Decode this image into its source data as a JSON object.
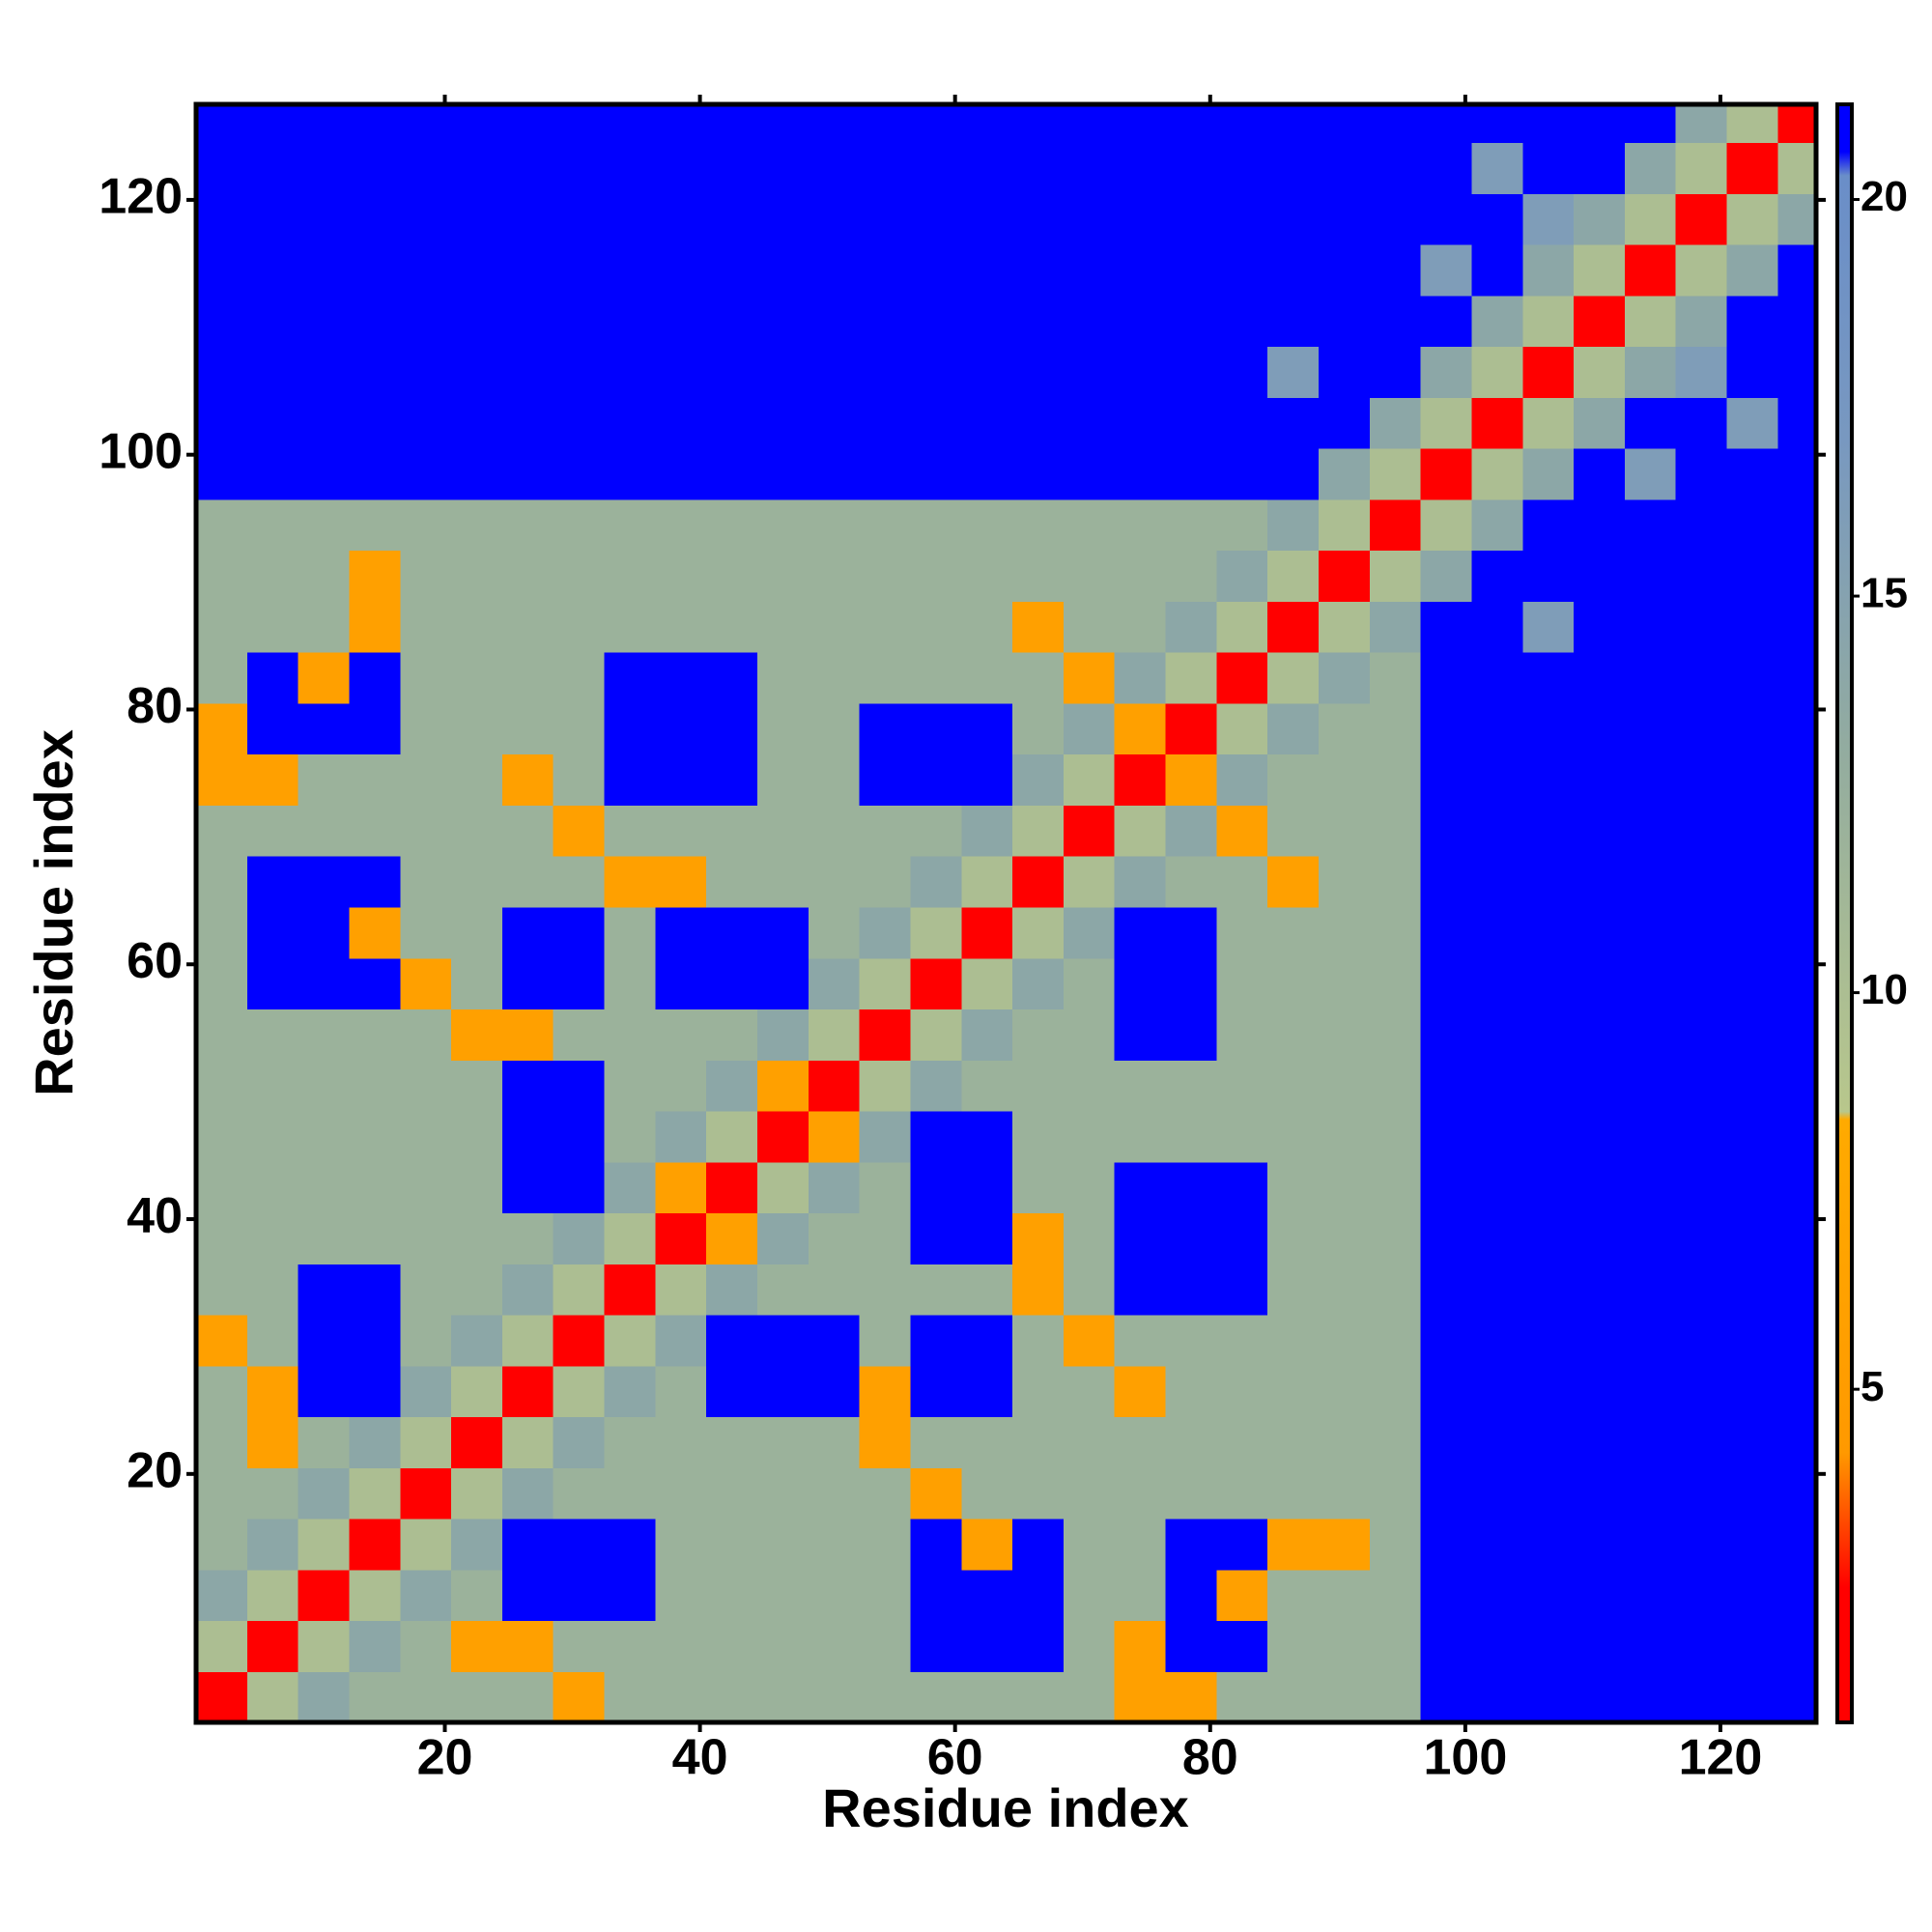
{
  "chart_data": {
    "type": "heatmap",
    "x_label": "Residue index",
    "y_label": "Residue index",
    "xlim": [
      0.5,
      127.5
    ],
    "ylim": [
      0.5,
      127.5
    ],
    "xticks": [
      20,
      40,
      60,
      80,
      100,
      120
    ],
    "yticks": [
      20,
      40,
      60,
      80,
      100,
      120
    ],
    "clim": [
      0.8,
      21.2
    ],
    "colorbar_ticks": [
      5,
      10,
      15,
      20
    ],
    "colorscale": [
      [
        0.8,
        "#ff0000"
      ],
      [
        2.5,
        "#ff0000"
      ],
      [
        4.2,
        "#ff9900"
      ],
      [
        8.4,
        "#ffaa00"
      ],
      [
        8.5,
        "#b8c78c"
      ],
      [
        13,
        "#93ac9f"
      ],
      [
        17,
        "#7898c0"
      ],
      [
        20.3,
        "#6a8ec8"
      ],
      [
        20.6,
        "#0000ff"
      ],
      [
        21.2,
        "#0000ff"
      ]
    ],
    "x_bins": [
      0.5,
      4.5,
      8.5,
      12.5,
      16.5,
      20.5,
      24.5,
      28.5,
      32.5,
      36.5,
      40.5,
      44.5,
      48.5,
      52.5,
      56.5,
      60.5,
      64.5,
      68.5,
      72.5,
      76.5,
      80.5,
      84.5,
      88.5,
      92.5,
      96.5,
      100.5,
      104.5,
      108.5,
      112.5,
      116.5,
      120.5,
      124.5,
      128.5
    ],
    "y_bins": [
      0.5,
      4.5,
      8.5,
      12.5,
      16.5,
      20.5,
      24.5,
      28.5,
      32.5,
      36.5,
      40.5,
      44.5,
      48.5,
      52.5,
      56.5,
      60.5,
      64.5,
      68.5,
      72.5,
      76.5,
      80.5,
      84.5,
      88.5,
      92.5,
      96.5,
      100.5,
      104.5,
      108.5,
      112.5,
      116.5,
      120.5,
      124.5,
      128.5
    ],
    "z": [
      [
        2,
        10,
        14,
        12,
        12,
        12,
        12,
        6,
        12,
        12,
        12,
        12,
        12,
        12,
        12,
        12,
        12,
        12,
        6,
        6,
        12,
        12,
        12,
        12,
        21,
        21,
        21,
        21,
        21,
        21,
        21,
        21
      ],
      [
        10,
        2,
        10,
        14,
        12,
        6,
        6,
        12,
        12,
        12,
        12,
        12,
        12,
        12,
        21,
        21,
        21,
        12,
        6,
        21,
        21,
        12,
        12,
        12,
        21,
        21,
        21,
        21,
        21,
        21,
        21,
        21
      ],
      [
        14,
        10,
        2,
        10,
        14,
        12,
        21,
        21,
        21,
        12,
        12,
        12,
        12,
        12,
        21,
        21,
        21,
        12,
        12,
        21,
        6,
        12,
        12,
        12,
        21,
        21,
        21,
        21,
        21,
        21,
        21,
        21
      ],
      [
        12,
        14,
        10,
        2,
        10,
        14,
        21,
        21,
        21,
        12,
        12,
        12,
        12,
        12,
        21,
        6,
        21,
        12,
        12,
        21,
        21,
        6,
        6,
        12,
        21,
        21,
        21,
        21,
        21,
        21,
        21,
        21
      ],
      [
        12,
        12,
        14,
        10,
        2,
        10,
        14,
        12,
        12,
        12,
        12,
        12,
        12,
        12,
        6,
        12,
        12,
        12,
        12,
        12,
        12,
        12,
        12,
        12,
        21,
        21,
        21,
        21,
        21,
        21,
        21,
        21
      ],
      [
        12,
        6,
        12,
        14,
        10,
        2,
        10,
        14,
        12,
        12,
        12,
        12,
        12,
        6,
        12,
        12,
        12,
        12,
        12,
        12,
        12,
        12,
        12,
        12,
        21,
        21,
        21,
        21,
        21,
        21,
        21,
        21
      ],
      [
        12,
        6,
        21,
        21,
        14,
        10,
        2,
        10,
        14,
        12,
        21,
        21,
        21,
        6,
        21,
        21,
        12,
        12,
        6,
        12,
        12,
        12,
        12,
        12,
        21,
        21,
        21,
        21,
        21,
        21,
        21,
        21
      ],
      [
        6,
        12,
        21,
        21,
        12,
        14,
        10,
        2,
        10,
        14,
        21,
        21,
        21,
        12,
        21,
        21,
        12,
        6,
        12,
        12,
        12,
        12,
        12,
        12,
        21,
        21,
        21,
        21,
        21,
        21,
        21,
        21
      ],
      [
        12,
        12,
        21,
        21,
        12,
        12,
        14,
        10,
        2,
        10,
        14,
        12,
        12,
        12,
        12,
        12,
        6,
        12,
        21,
        21,
        21,
        12,
        12,
        12,
        21,
        21,
        21,
        21,
        21,
        21,
        21,
        21
      ],
      [
        12,
        12,
        12,
        12,
        12,
        12,
        12,
        14,
        10,
        2,
        6,
        14,
        12,
        12,
        21,
        21,
        6,
        12,
        21,
        21,
        21,
        12,
        12,
        12,
        21,
        21,
        21,
        21,
        21,
        21,
        21,
        21
      ],
      [
        12,
        12,
        12,
        12,
        12,
        12,
        21,
        21,
        14,
        6,
        2,
        10,
        14,
        12,
        21,
        21,
        12,
        12,
        21,
        21,
        21,
        12,
        12,
        12,
        21,
        21,
        21,
        21,
        21,
        21,
        21,
        21
      ],
      [
        12,
        12,
        12,
        12,
        12,
        12,
        21,
        21,
        12,
        14,
        10,
        2,
        6,
        14,
        21,
        21,
        12,
        12,
        12,
        12,
        12,
        12,
        12,
        12,
        21,
        21,
        21,
        21,
        21,
        21,
        21,
        21
      ],
      [
        12,
        12,
        12,
        12,
        12,
        12,
        21,
        21,
        12,
        12,
        14,
        6,
        2,
        10,
        14,
        12,
        12,
        12,
        12,
        12,
        12,
        12,
        12,
        12,
        21,
        21,
        21,
        21,
        21,
        21,
        21,
        21
      ],
      [
        12,
        12,
        12,
        12,
        12,
        6,
        6,
        12,
        12,
        12,
        12,
        14,
        10,
        2,
        10,
        14,
        12,
        12,
        21,
        21,
        12,
        12,
        12,
        12,
        21,
        21,
        21,
        21,
        21,
        21,
        21,
        21
      ],
      [
        12,
        21,
        21,
        21,
        6,
        12,
        21,
        21,
        12,
        21,
        21,
        21,
        14,
        10,
        2,
        10,
        14,
        12,
        21,
        21,
        12,
        12,
        12,
        12,
        21,
        21,
        21,
        21,
        21,
        21,
        21,
        21
      ],
      [
        12,
        21,
        21,
        6,
        12,
        12,
        21,
        21,
        12,
        21,
        21,
        21,
        12,
        14,
        10,
        2,
        10,
        14,
        21,
        21,
        12,
        12,
        12,
        12,
        21,
        21,
        21,
        21,
        21,
        21,
        21,
        21
      ],
      [
        12,
        21,
        21,
        21,
        12,
        12,
        12,
        12,
        6,
        6,
        12,
        12,
        12,
        12,
        14,
        10,
        2,
        10,
        14,
        12,
        12,
        6,
        12,
        12,
        21,
        21,
        21,
        21,
        21,
        21,
        21,
        21
      ],
      [
        12,
        12,
        12,
        12,
        12,
        12,
        12,
        6,
        12,
        12,
        12,
        12,
        12,
        12,
        12,
        14,
        10,
        2,
        10,
        14,
        6,
        12,
        12,
        12,
        21,
        21,
        21,
        21,
        21,
        21,
        21,
        21
      ],
      [
        6,
        6,
        12,
        12,
        12,
        12,
        6,
        12,
        21,
        21,
        21,
        12,
        12,
        21,
        21,
        21,
        14,
        10,
        2,
        6,
        14,
        12,
        12,
        12,
        21,
        21,
        21,
        21,
        21,
        21,
        21,
        21
      ],
      [
        6,
        21,
        21,
        21,
        12,
        12,
        12,
        12,
        21,
        21,
        21,
        12,
        12,
        21,
        21,
        21,
        12,
        14,
        6,
        2,
        10,
        14,
        12,
        12,
        21,
        21,
        21,
        21,
        21,
        21,
        21,
        21
      ],
      [
        12,
        21,
        6,
        21,
        12,
        12,
        12,
        12,
        21,
        21,
        21,
        12,
        12,
        12,
        12,
        12,
        12,
        6,
        14,
        10,
        2,
        10,
        14,
        12,
        21,
        21,
        21,
        21,
        21,
        21,
        21,
        21
      ],
      [
        12,
        12,
        12,
        6,
        12,
        12,
        12,
        12,
        12,
        12,
        12,
        12,
        12,
        12,
        12,
        12,
        6,
        12,
        12,
        14,
        10,
        2,
        10,
        14,
        21,
        21,
        16,
        21,
        21,
        21,
        21,
        21
      ],
      [
        12,
        12,
        12,
        6,
        12,
        12,
        12,
        12,
        12,
        12,
        12,
        12,
        12,
        12,
        12,
        12,
        12,
        12,
        12,
        12,
        14,
        10,
        2,
        10,
        14,
        21,
        21,
        21,
        21,
        21,
        21,
        21
      ],
      [
        12,
        12,
        12,
        12,
        12,
        12,
        12,
        12,
        12,
        12,
        12,
        12,
        12,
        12,
        12,
        12,
        12,
        12,
        12,
        12,
        12,
        14,
        10,
        2,
        10,
        14,
        21,
        21,
        21,
        21,
        21,
        21
      ],
      [
        21,
        21,
        21,
        21,
        21,
        21,
        21,
        21,
        21,
        21,
        21,
        21,
        21,
        21,
        21,
        21,
        21,
        21,
        21,
        21,
        21,
        21,
        14,
        10,
        2,
        10,
        14,
        21,
        16,
        21,
        21,
        21
      ],
      [
        21,
        21,
        21,
        21,
        21,
        21,
        21,
        21,
        21,
        21,
        21,
        21,
        21,
        21,
        21,
        21,
        21,
        21,
        21,
        21,
        21,
        21,
        21,
        14,
        10,
        2,
        10,
        14,
        21,
        21,
        16,
        21
      ],
      [
        21,
        21,
        21,
        21,
        21,
        21,
        21,
        21,
        21,
        21,
        21,
        21,
        21,
        21,
        21,
        21,
        21,
        21,
        21,
        21,
        21,
        16,
        21,
        21,
        14,
        10,
        2,
        10,
        14,
        16,
        21,
        21
      ],
      [
        21,
        21,
        21,
        21,
        21,
        21,
        21,
        21,
        21,
        21,
        21,
        21,
        21,
        21,
        21,
        21,
        21,
        21,
        21,
        21,
        21,
        21,
        21,
        21,
        21,
        14,
        10,
        2,
        10,
        14,
        21,
        21
      ],
      [
        21,
        21,
        21,
        21,
        21,
        21,
        21,
        21,
        21,
        21,
        21,
        21,
        21,
        21,
        21,
        21,
        21,
        21,
        21,
        21,
        21,
        21,
        21,
        21,
        16,
        21,
        14,
        10,
        2,
        10,
        14,
        21
      ],
      [
        21,
        21,
        21,
        21,
        21,
        21,
        21,
        21,
        21,
        21,
        21,
        21,
        21,
        21,
        21,
        21,
        21,
        21,
        21,
        21,
        21,
        21,
        21,
        21,
        21,
        21,
        16,
        14,
        10,
        2,
        10,
        14
      ],
      [
        21,
        21,
        21,
        21,
        21,
        21,
        21,
        21,
        21,
        21,
        21,
        21,
        21,
        21,
        21,
        21,
        21,
        21,
        21,
        21,
        21,
        21,
        21,
        21,
        21,
        16,
        21,
        21,
        14,
        10,
        2,
        10
      ],
      [
        21,
        21,
        21,
        21,
        21,
        21,
        21,
        21,
        21,
        21,
        21,
        21,
        21,
        21,
        21,
        21,
        21,
        21,
        21,
        21,
        21,
        21,
        21,
        21,
        21,
        21,
        21,
        21,
        21,
        14,
        10,
        2
      ]
    ]
  }
}
